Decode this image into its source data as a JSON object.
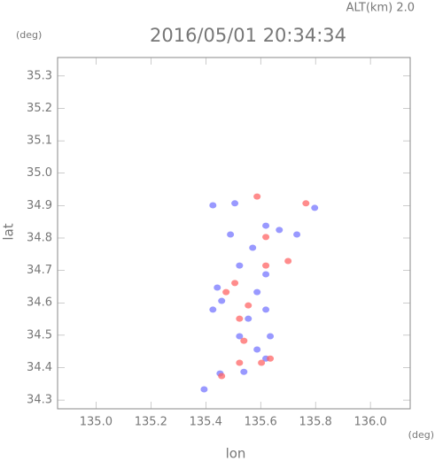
{
  "chart_data": {
    "type": "scatter",
    "title": "2016/05/01 20:34:34",
    "subtitle": "ALT(km) 2.0",
    "x_label": "lon",
    "y_label": "lat",
    "x_unit": "(deg)",
    "y_unit": "(deg)",
    "xlim": [
      134.86,
      136.145
    ],
    "ylim": [
      34.273,
      35.357
    ],
    "xticks": [
      {
        "value": 135,
        "label": "135.0"
      },
      135.2,
      135.4,
      135.6,
      135.8,
      {
        "value": 136,
        "label": "136.0"
      }
    ],
    "yticks": [
      34.3,
      34.4,
      34.5,
      34.6,
      34.7,
      34.8,
      34.9,
      {
        "value": 35,
        "label": "35.0"
      },
      35.1,
      35.2,
      35.3
    ],
    "series": [
      {
        "color": "#7777ff",
        "x": [
          135.452,
          135.539,
          135.619,
          135.587,
          135.523,
          135.555,
          135.619,
          135.458,
          135.587,
          135.442,
          135.619,
          135.523,
          135.668,
          135.619,
          135.506,
          135.426,
          135.797,
          135.732,
          135.49,
          135.426,
          135.394,
          135.635,
          135.571
        ],
        "values": [
          34.382,
          34.387,
          34.428,
          34.456,
          34.497,
          34.551,
          34.579,
          34.606,
          34.633,
          34.647,
          34.688,
          34.715,
          34.825,
          34.838,
          34.907,
          34.901,
          34.893,
          34.811,
          34.811,
          34.579,
          34.333,
          34.497,
          34.77
        ]
      },
      {
        "color": "#ff6666",
        "x": [
          135.458,
          135.523,
          135.635,
          135.603,
          135.523,
          135.555,
          135.506,
          135.619,
          135.619,
          135.587,
          135.765,
          135.7,
          135.539,
          135.474
        ],
        "values": [
          34.374,
          34.415,
          34.428,
          34.415,
          34.551,
          34.592,
          34.661,
          34.715,
          34.803,
          34.928,
          34.907,
          34.729,
          34.483,
          34.633
        ]
      }
    ]
  }
}
